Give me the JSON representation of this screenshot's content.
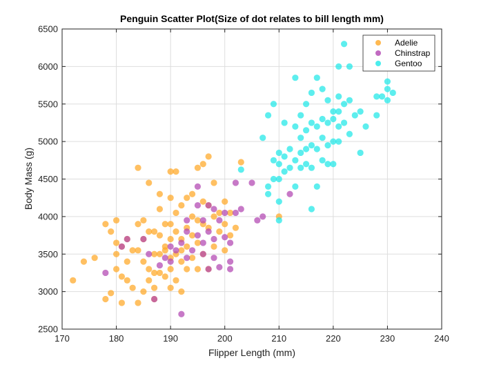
{
  "chart_data": {
    "type": "scatter",
    "title": "Penguin Scatter Plot(Size of dot relates to bill length mm)",
    "xlabel": "Flipper Length (mm)",
    "ylabel": "Body Mass (g)",
    "xlim": [
      170,
      240
    ],
    "ylim": [
      2500,
      6500
    ],
    "xticks": [
      170,
      180,
      190,
      200,
      210,
      220,
      230,
      240
    ],
    "yticks": [
      2500,
      3000,
      3500,
      4000,
      4500,
      5000,
      5500,
      6000,
      6500
    ],
    "grid": true,
    "legend_position": "top-right",
    "series": [
      {
        "name": "Adelie",
        "color": "#ffa726",
        "points": [
          [
            172,
            3150
          ],
          [
            174,
            3400
          ],
          [
            176,
            3450
          ],
          [
            178,
            2900
          ],
          [
            178,
            3900
          ],
          [
            179,
            2980
          ],
          [
            179,
            3800
          ],
          [
            180,
            3300
          ],
          [
            180,
            3500
          ],
          [
            180,
            3650
          ],
          [
            180,
            3950
          ],
          [
            181,
            2850
          ],
          [
            181,
            3200
          ],
          [
            181,
            3600
          ],
          [
            182,
            3700
          ],
          [
            182,
            3400
          ],
          [
            182,
            3150
          ],
          [
            183,
            3550
          ],
          [
            183,
            3050
          ],
          [
            184,
            3550
          ],
          [
            184,
            3900
          ],
          [
            184,
            2850
          ],
          [
            184,
            4650
          ],
          [
            185,
            3000
          ],
          [
            185,
            3400
          ],
          [
            185,
            3700
          ],
          [
            185,
            3950
          ],
          [
            186,
            3150
          ],
          [
            186,
            3300
          ],
          [
            186,
            3800
          ],
          [
            186,
            4450
          ],
          [
            187,
            3050
          ],
          [
            187,
            3500
          ],
          [
            187,
            3250
          ],
          [
            187,
            3800
          ],
          [
            187,
            2900
          ],
          [
            188,
            3250
          ],
          [
            188,
            3500
          ],
          [
            188,
            3750
          ],
          [
            188,
            4100
          ],
          [
            188,
            4300
          ],
          [
            189,
            3200
          ],
          [
            189,
            3550
          ],
          [
            189,
            3900
          ],
          [
            189,
            3600
          ],
          [
            190,
            3050
          ],
          [
            190,
            3300
          ],
          [
            190,
            3450
          ],
          [
            190,
            3700
          ],
          [
            190,
            3900
          ],
          [
            190,
            4250
          ],
          [
            190,
            4600
          ],
          [
            191,
            3150
          ],
          [
            191,
            3500
          ],
          [
            191,
            3800
          ],
          [
            191,
            4050
          ],
          [
            191,
            4600
          ],
          [
            192,
            3000
          ],
          [
            192,
            3400
          ],
          [
            192,
            3550
          ],
          [
            192,
            3700
          ],
          [
            192,
            4150
          ],
          [
            193,
            3300
          ],
          [
            193,
            3600
          ],
          [
            193,
            3850
          ],
          [
            193,
            4250
          ],
          [
            194,
            3450
          ],
          [
            194,
            3750
          ],
          [
            194,
            4000
          ],
          [
            194,
            4300
          ],
          [
            195,
            3300
          ],
          [
            195,
            3650
          ],
          [
            195,
            3950
          ],
          [
            195,
            4650
          ],
          [
            196,
            3500
          ],
          [
            196,
            3900
          ],
          [
            196,
            4200
          ],
          [
            196,
            4700
          ],
          [
            197,
            3300
          ],
          [
            197,
            3850
          ],
          [
            197,
            4150
          ],
          [
            197,
            4800
          ],
          [
            198,
            3600
          ],
          [
            198,
            4000
          ],
          [
            198,
            4450
          ],
          [
            199,
            3800
          ],
          [
            199,
            4050
          ],
          [
            200,
            3550
          ],
          [
            200,
            3900
          ],
          [
            200,
            4200
          ],
          [
            201,
            3750
          ],
          [
            201,
            4050
          ],
          [
            202,
            3850
          ],
          [
            203,
            4725
          ],
          [
            210,
            4000
          ]
        ]
      },
      {
        "name": "Chinstrap",
        "color": "#b245b2",
        "points": [
          [
            178,
            3250
          ],
          [
            181,
            3600
          ],
          [
            182,
            3700
          ],
          [
            185,
            3700
          ],
          [
            186,
            3500
          ],
          [
            187,
            2900
          ],
          [
            188,
            3350
          ],
          [
            189,
            3450
          ],
          [
            190,
            3400
          ],
          [
            190,
            3600
          ],
          [
            191,
            3550
          ],
          [
            192,
            2700
          ],
          [
            192,
            3650
          ],
          [
            193,
            3450
          ],
          [
            193,
            3800
          ],
          [
            193,
            3950
          ],
          [
            194,
            3550
          ],
          [
            195,
            3750
          ],
          [
            195,
            4400
          ],
          [
            195,
            4150
          ],
          [
            196,
            3650
          ],
          [
            196,
            3500
          ],
          [
            196,
            3950
          ],
          [
            197,
            3300
          ],
          [
            197,
            3800
          ],
          [
            197,
            4150
          ],
          [
            198,
            3450
          ],
          [
            198,
            3700
          ],
          [
            198,
            4100
          ],
          [
            199,
            3325
          ],
          [
            199,
            3950
          ],
          [
            200,
            3725
          ],
          [
            200,
            4050
          ],
          [
            201,
            3400
          ],
          [
            201,
            3300
          ],
          [
            201,
            3650
          ],
          [
            202,
            4050
          ],
          [
            202,
            4450
          ],
          [
            203,
            4100
          ],
          [
            205,
            4450
          ],
          [
            206,
            3950
          ],
          [
            207,
            4000
          ],
          [
            212,
            4300
          ]
        ]
      },
      {
        "name": "Gentoo",
        "color": "#1fe8e8",
        "points": [
          [
            203,
            4625
          ],
          [
            207,
            5050
          ],
          [
            208,
            4300
          ],
          [
            208,
            4400
          ],
          [
            208,
            5350
          ],
          [
            209,
            4500
          ],
          [
            209,
            4750
          ],
          [
            209,
            5500
          ],
          [
            210,
            4200
          ],
          [
            210,
            4500
          ],
          [
            210,
            4700
          ],
          [
            210,
            4850
          ],
          [
            210,
            3950
          ],
          [
            211,
            4600
          ],
          [
            211,
            4800
          ],
          [
            211,
            5250
          ],
          [
            212,
            4650
          ],
          [
            212,
            4900
          ],
          [
            213,
            4400
          ],
          [
            213,
            4750
          ],
          [
            213,
            5200
          ],
          [
            213,
            5850
          ],
          [
            214,
            4650
          ],
          [
            214,
            4850
          ],
          [
            214,
            5050
          ],
          [
            214,
            5350
          ],
          [
            215,
            4700
          ],
          [
            215,
            4900
          ],
          [
            215,
            5150
          ],
          [
            215,
            5500
          ],
          [
            216,
            4100
          ],
          [
            216,
            4650
          ],
          [
            216,
            4950
          ],
          [
            216,
            5250
          ],
          [
            216,
            5650
          ],
          [
            217,
            4400
          ],
          [
            217,
            4900
          ],
          [
            217,
            5200
          ],
          [
            217,
            5850
          ],
          [
            218,
            4750
          ],
          [
            218,
            5050
          ],
          [
            218,
            5300
          ],
          [
            218,
            5700
          ],
          [
            219,
            4700
          ],
          [
            219,
            4950
          ],
          [
            219,
            5250
          ],
          [
            219,
            5550
          ],
          [
            220,
            4700
          ],
          [
            220,
            5000
          ],
          [
            220,
            5300
          ],
          [
            220,
            5400
          ],
          [
            221,
            5000
          ],
          [
            221,
            5200
          ],
          [
            221,
            5400
          ],
          [
            221,
            5600
          ],
          [
            221,
            6000
          ],
          [
            222,
            5250
          ],
          [
            222,
            5500
          ],
          [
            222,
            6300
          ],
          [
            223,
            5100
          ],
          [
            223,
            5550
          ],
          [
            223,
            6000
          ],
          [
            224,
            5350
          ],
          [
            225,
            4850
          ],
          [
            225,
            5400
          ],
          [
            226,
            5200
          ],
          [
            228,
            5350
          ],
          [
            228,
            5600
          ],
          [
            229,
            5600
          ],
          [
            230,
            5550
          ],
          [
            230,
            5700
          ],
          [
            230,
            5800
          ],
          [
            231,
            5650
          ]
        ]
      }
    ]
  }
}
